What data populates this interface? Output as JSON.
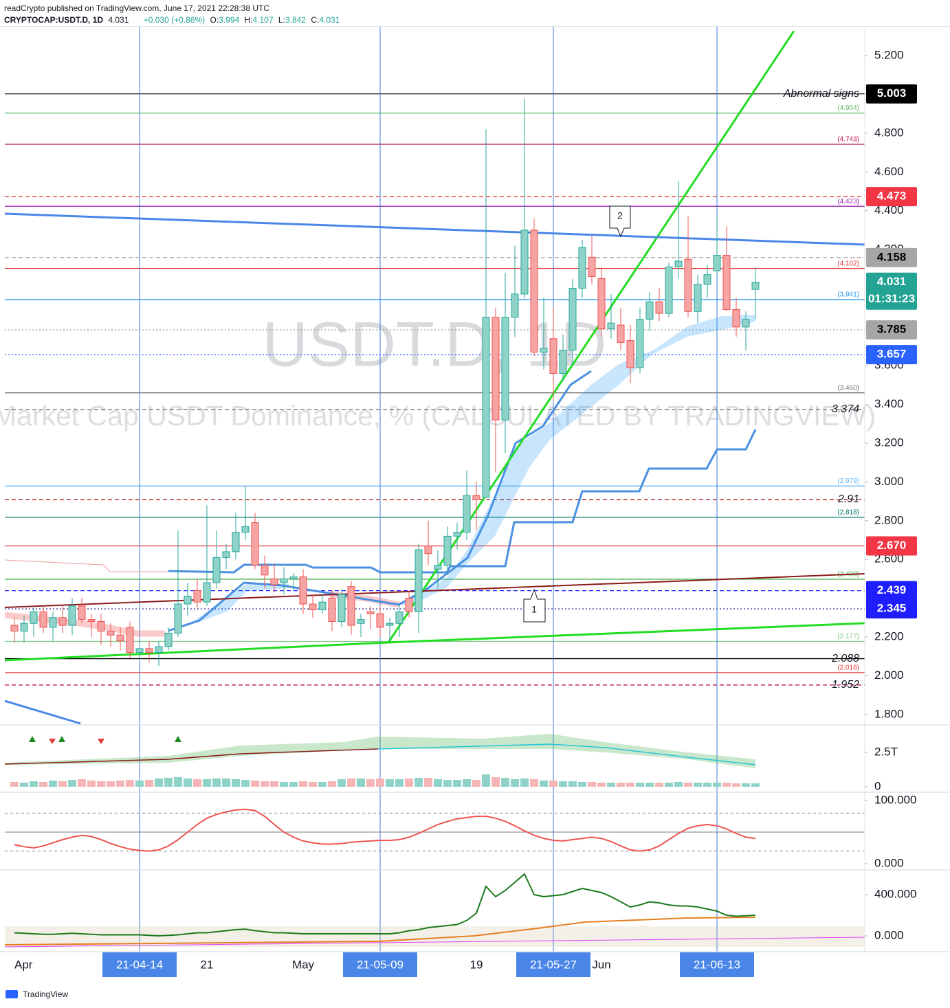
{
  "header": {
    "publisher": "readCrypto published on TradingView.com, June 17, 2021 22:28:38 UTC",
    "symbol": "CRYPTOCAP:USDT.D, 1D",
    "last": 4.031,
    "change": "+0.030 (+0.86%)",
    "labels": [
      "O:",
      "H:",
      "L:",
      "C:"
    ],
    "open": 3.994,
    "high": 4.107,
    "low": 3.842,
    "close": 4.031
  },
  "watermark": {
    "symbol": "USDT.D, 1D",
    "description": "Market Cap USDT Dominance, % (CALCULATED BY TRADINGVIEW)"
  },
  "footer": {
    "brand": "TradingView"
  },
  "chart_data": [
    {
      "type": "candlestick",
      "categories": [
        "Apr",
        null,
        null,
        null,
        null,
        null,
        null,
        null,
        null,
        null,
        null,
        null,
        null,
        "21-04-14",
        null,
        null,
        null,
        null,
        null,
        null,
        "21",
        null,
        null,
        null,
        null,
        null,
        null,
        null,
        null,
        null,
        "May",
        null,
        null,
        null,
        null,
        null,
        null,
        null,
        "21-05-09",
        null,
        null,
        null,
        null,
        null,
        null,
        null,
        null,
        null,
        "19",
        null,
        null,
        null,
        null,
        null,
        null,
        null,
        "21-05-27",
        null,
        null,
        null,
        null,
        "Jun",
        null,
        null,
        null,
        null,
        null,
        null,
        null,
        null,
        null,
        null,
        null,
        "21-06-13",
        null,
        null,
        null,
        null
      ],
      "marked_dates": [
        "21-04-14",
        "21-05-09",
        "21-05-27",
        "21-06-13"
      ],
      "open": [
        2.26,
        2.23,
        2.27,
        2.33,
        2.25,
        2.3,
        2.26,
        2.36,
        2.29,
        2.28,
        2.23,
        2.21,
        2.25,
        2.12,
        2.14,
        2.12,
        2.15,
        2.22,
        2.37,
        2.44,
        2.38,
        2.48,
        2.61,
        2.64,
        2.74,
        2.79,
        2.57,
        2.5,
        2.48,
        2.5,
        2.51,
        2.37,
        2.34,
        2.4,
        2.28,
        2.46,
        2.27,
        2.33,
        2.32,
        2.26,
        2.27,
        2.4,
        2.33,
        2.67,
        2.55,
        2.57,
        2.72,
        2.74,
        2.93,
        2.92,
        3.85,
        3.32,
        3.85,
        3.97,
        4.3,
        3.67,
        3.74,
        3.56,
        3.68,
        4.0,
        4.16,
        4.05,
        3.79,
        3.81,
        3.73,
        3.59,
        3.84,
        3.93,
        3.87,
        4.11,
        4.15,
        3.88,
        4.02,
        4.09,
        4.17,
        3.89,
        3.8,
        3.994
      ],
      "high": [
        2.3,
        2.31,
        2.35,
        2.36,
        2.33,
        2.36,
        2.4,
        2.4,
        2.32,
        2.32,
        2.27,
        2.25,
        2.28,
        2.17,
        2.18,
        2.18,
        2.25,
        2.75,
        2.48,
        2.5,
        2.88,
        2.75,
        2.68,
        2.84,
        2.98,
        2.84,
        2.62,
        2.58,
        2.56,
        2.53,
        2.55,
        2.42,
        2.42,
        2.44,
        2.45,
        2.49,
        2.32,
        2.36,
        2.36,
        2.3,
        2.37,
        2.44,
        2.68,
        2.8,
        2.65,
        2.77,
        2.79,
        3.06,
        3.0,
        4.82,
        3.9,
        4.08,
        4.22,
        4.98,
        4.36,
        3.95,
        3.9,
        3.76,
        4.05,
        4.25,
        4.27,
        4.11,
        3.97,
        3.9,
        3.81,
        3.9,
        3.98,
        4.0,
        4.13,
        4.55,
        4.37,
        4.07,
        4.12,
        4.37,
        4.32,
        3.95,
        3.88,
        4.107
      ],
      "low": [
        2.17,
        2.17,
        2.2,
        2.22,
        2.18,
        2.22,
        2.21,
        2.27,
        2.2,
        2.16,
        2.15,
        2.13,
        2.09,
        2.08,
        2.07,
        2.05,
        2.13,
        2.2,
        2.31,
        2.35,
        2.36,
        2.45,
        2.55,
        2.6,
        2.7,
        2.55,
        2.45,
        2.43,
        2.42,
        2.44,
        2.32,
        2.3,
        2.32,
        2.23,
        2.25,
        2.21,
        2.2,
        2.24,
        2.2,
        2.18,
        2.2,
        2.3,
        2.22,
        2.57,
        2.45,
        2.52,
        2.65,
        2.7,
        2.75,
        2.92,
        3.05,
        3.15,
        3.75,
        3.95,
        3.65,
        3.58,
        3.42,
        3.52,
        3.6,
        3.95,
        4.02,
        3.75,
        3.74,
        3.68,
        3.51,
        3.56,
        3.78,
        3.83,
        3.85,
        4.05,
        3.85,
        3.82,
        3.95,
        4.07,
        3.88,
        3.75,
        3.68,
        3.842
      ],
      "close": [
        2.23,
        2.27,
        2.33,
        2.25,
        2.3,
        2.26,
        2.36,
        2.29,
        2.28,
        2.23,
        2.21,
        2.18,
        2.12,
        2.14,
        2.12,
        2.15,
        2.22,
        2.37,
        2.41,
        2.38,
        2.48,
        2.61,
        2.64,
        2.74,
        2.77,
        2.57,
        2.52,
        2.47,
        2.5,
        2.51,
        2.37,
        2.34,
        2.38,
        2.28,
        2.42,
        2.26,
        2.29,
        2.32,
        2.25,
        2.27,
        2.33,
        2.33,
        2.65,
        2.63,
        2.57,
        2.72,
        2.74,
        2.93,
        2.91,
        3.85,
        3.32,
        3.85,
        3.97,
        4.3,
        3.67,
        3.69,
        3.56,
        3.68,
        4.0,
        4.21,
        4.06,
        3.79,
        3.82,
        3.72,
        3.59,
        3.84,
        3.93,
        3.87,
        4.11,
        4.14,
        3.88,
        4.02,
        4.07,
        4.17,
        3.89,
        3.8,
        3.84,
        4.031
      ],
      "up_color": "#8fd3c8",
      "up_border": "#26a69a",
      "down_color": "#f5a3a3",
      "down_border": "#ef5350",
      "ylim": [
        1.746,
        5.328
      ],
      "yticks": [
        {
          "value": 5.2,
          "label": "5.200"
        },
        {
          "value": 4.8,
          "label": "4.800"
        },
        {
          "value": 4.6,
          "label": "4.600"
        },
        {
          "value": 4.4,
          "label": "4.400"
        },
        {
          "value": 4.2,
          "label": "4.200"
        },
        {
          "value": 3.6,
          "label": "3.600"
        },
        {
          "value": 3.4,
          "label": "3.400"
        },
        {
          "value": 3.2,
          "label": "3.200"
        },
        {
          "value": 3.0,
          "label": "3.000"
        },
        {
          "value": 2.8,
          "label": "2.800"
        },
        {
          "value": 2.6,
          "label": "2.600"
        },
        {
          "value": 2.2,
          "label": "2.200"
        },
        {
          "value": 2.0,
          "label": "2.000"
        },
        {
          "value": 1.8,
          "label": "1.800"
        }
      ],
      "levels": [
        {
          "value": 5.003,
          "color": "#000000",
          "dash": "solid",
          "label": "Abnormal signs",
          "label_style": "italic"
        },
        {
          "value": 4.904,
          "color": "#66bb6a",
          "dash": "solid",
          "label": "(4.904)",
          "label_style": "small"
        },
        {
          "value": 4.743,
          "color": "#c2185b",
          "dash": "solid",
          "label": "(4.743)",
          "label_style": "small"
        },
        {
          "value": 4.473,
          "color": "#e53935",
          "dash": "dashed"
        },
        {
          "value": 4.423,
          "color": "#9c27b0",
          "dash": "solid",
          "label": "(4.423)",
          "label_style": "small"
        },
        {
          "value": 4.158,
          "color": "#9e9e9e",
          "dash": "dashed"
        },
        {
          "value": 4.102,
          "color": "#e53935",
          "dash": "solid",
          "label": "(4.102)",
          "label_style": "small"
        },
        {
          "value": 3.941,
          "color": "#2196f3",
          "dash": "solid",
          "label": "(3.941)",
          "label_style": "small"
        },
        {
          "value": 3.785,
          "color": "#9e9e9e",
          "dash": "dotted"
        },
        {
          "value": 3.657,
          "color": "#2962ff",
          "dash": "dotted"
        },
        {
          "value": 3.46,
          "color": "#757575",
          "dash": "solid",
          "label": "(3.460)",
          "label_style": "small"
        },
        {
          "value": 3.374,
          "color": "#757575",
          "dash": "dashed",
          "label": "3.374",
          "label_style": "italic"
        },
        {
          "value": 2.979,
          "color": "#64b5f6",
          "dash": "solid",
          "label": "(2.979)",
          "label_style": "small"
        },
        {
          "value": 2.91,
          "color": "#b71c1c",
          "dash": "dashed",
          "label": "2.91",
          "label_style": "italic"
        },
        {
          "value": 2.818,
          "color": "#00796b",
          "dash": "solid",
          "label": "(2.818)",
          "label_style": "small"
        },
        {
          "value": 2.67,
          "color": "#e53935",
          "dash": "solid"
        },
        {
          "value": 2.498,
          "color": "#4caf50",
          "dash": "solid",
          "label": "(2.498)",
          "label_style": "small"
        },
        {
          "value": 2.439,
          "color": "#1a1aff",
          "dash": "dashed"
        },
        {
          "value": 2.345,
          "color": "#0d0d8c",
          "dash": "dotted"
        },
        {
          "value": 2.177,
          "color": "#81c784",
          "dash": "solid",
          "label": "(2.177)",
          "label_style": "small"
        },
        {
          "value": 2.088,
          "color": "#000000",
          "dash": "solid",
          "label": "2.088",
          "label_style": "italic"
        },
        {
          "value": 2.016,
          "color": "#e53935",
          "dash": "solid",
          "label": "(2.016)",
          "label_style": "small"
        },
        {
          "value": 1.952,
          "color": "#c2185b",
          "dash": "dashed",
          "label": "1.952",
          "label_style": "italic"
        }
      ],
      "price_tags": [
        {
          "value": 5.003,
          "color": "#000000",
          "text_color": "#ffffff"
        },
        {
          "value": 4.473,
          "color": "#f23645",
          "text_color": "#ffffff"
        },
        {
          "value": 4.158,
          "color": "#a6a6a6",
          "text_color": "#000000"
        },
        {
          "value": 4.031,
          "color": "#22a394",
          "text_color": "#ffffff",
          "countdown": "01:31:23"
        },
        {
          "value": 3.785,
          "color": "#a6a6a6",
          "text_color": "#000000"
        },
        {
          "value": 3.657,
          "color": "#2962ff",
          "text_color": "#ffffff"
        },
        {
          "value": 2.67,
          "label": "2.670",
          "color": "#f23645",
          "text_color": "#ffffff"
        },
        {
          "value": 2.439,
          "color": "#1e1eff",
          "text_color": "#ffffff"
        },
        {
          "value": 2.345,
          "color": "#1e1eff",
          "text_color": "#ffffff"
        }
      ],
      "annotations": [
        "1",
        "2"
      ]
    },
    {
      "type": "bar",
      "values": [
        0.35,
        0.3,
        0.4,
        0.35,
        0.45,
        0.4,
        0.5,
        0.55,
        0.45,
        0.4,
        0.4,
        0.45,
        0.5,
        0.45,
        0.5,
        0.6,
        0.65,
        0.7,
        0.6,
        0.55,
        0.55,
        0.6,
        0.6,
        0.55,
        0.5,
        0.45,
        0.4,
        0.4,
        0.35,
        0.35,
        0.4,
        0.35,
        0.35,
        0.4,
        0.55,
        0.6,
        0.6,
        0.55,
        0.6,
        0.55,
        0.55,
        0.6,
        0.65,
        0.65,
        0.55,
        0.5,
        0.5,
        0.55,
        0.5,
        0.9,
        0.7,
        0.65,
        0.55,
        0.6,
        0.55,
        0.45,
        0.45,
        0.4,
        0.4,
        0.35,
        0.35,
        0.3,
        0.3,
        0.3,
        0.3,
        0.3,
        0.3,
        0.3,
        0.3,
        0.35,
        0.3,
        0.3,
        0.3,
        0.3,
        0.3,
        0.25,
        0.25,
        0.25
      ],
      "up_color": "#8fd3c8",
      "down_color": "#f5b5b5",
      "ylim": [
        -0.35,
        4.4
      ],
      "yticks": [
        {
          "value": 2.5,
          "label": "2.5T"
        },
        0
      ]
    },
    {
      "type": "line",
      "values": [
        30,
        27,
        25,
        28,
        33,
        38,
        42,
        45,
        43,
        38,
        32,
        27,
        23,
        21,
        20,
        22,
        28,
        38,
        50,
        62,
        72,
        78,
        82,
        85,
        86,
        84,
        75,
        62,
        50,
        42,
        36,
        33,
        31,
        31,
        32,
        34,
        35,
        36,
        37,
        37,
        38,
        42,
        48,
        55,
        62,
        67,
        71,
        73,
        75,
        75,
        72,
        67,
        60,
        52,
        45,
        40,
        37,
        36,
        38,
        40,
        42,
        40,
        35,
        28,
        22,
        20,
        22,
        28,
        38,
        48,
        56,
        60,
        62,
        60,
        55,
        48,
        42,
        40
      ],
      "color": "#ef5350",
      "levels": [
        80,
        50,
        20
      ],
      "ylim": [
        -8.7,
        110.9
      ],
      "yticks": [
        {
          "value": 100,
          "label": "100.000"
        },
        {
          "value": 0,
          "label": "0.000"
        }
      ]
    },
    {
      "type": "line",
      "values": [
        30,
        25,
        20,
        15,
        15,
        20,
        25,
        20,
        15,
        10,
        10,
        10,
        10,
        10,
        5,
        0,
        5,
        10,
        20,
        30,
        30,
        40,
        50,
        60,
        65,
        50,
        40,
        30,
        30,
        25,
        20,
        20,
        20,
        20,
        20,
        20,
        20,
        20,
        20,
        20,
        30,
        50,
        60,
        80,
        90,
        100,
        110,
        150,
        220,
        480,
        380,
        440,
        520,
        600,
        400,
        380,
        390,
        400,
        430,
        460,
        440,
        420,
        380,
        330,
        280,
        300,
        330,
        320,
        300,
        290,
        290,
        280,
        260,
        240,
        200,
        190,
        195,
        200
      ],
      "color": "#1b7a1b",
      "ylim": [
        -153,
        626.7
      ],
      "yticks": [
        {
          "value": 400,
          "label": "400.000"
        },
        {
          "value": 0,
          "label": "0.000"
        }
      ]
    }
  ]
}
